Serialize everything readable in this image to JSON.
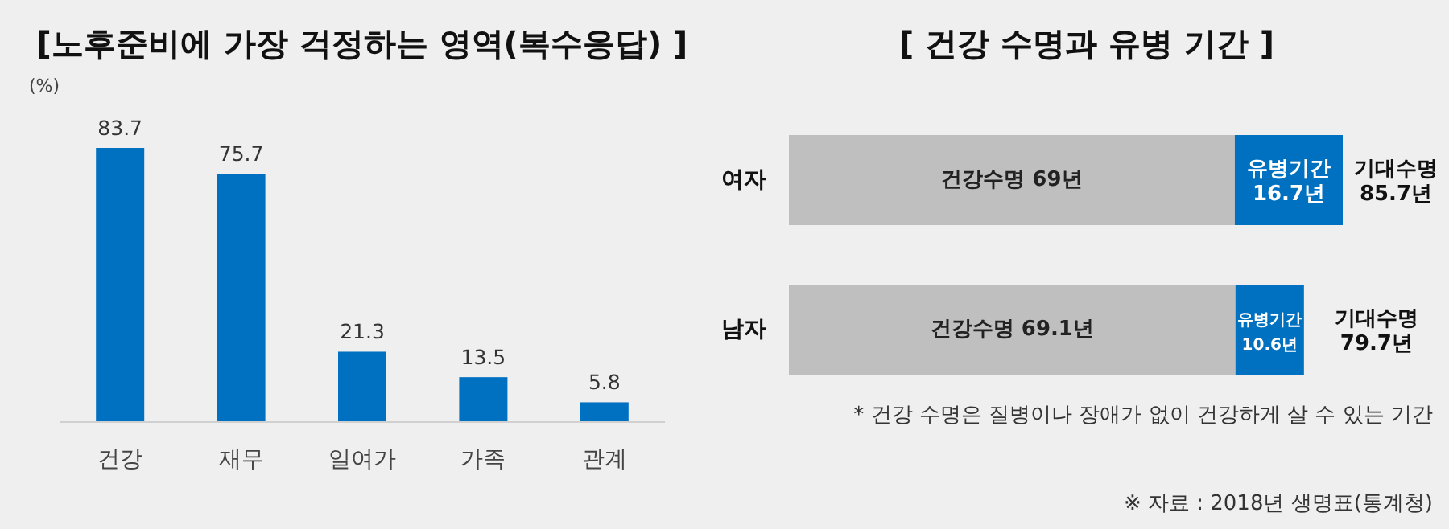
{
  "chart_data": [
    {
      "type": "bar",
      "title": "[노후준비에 가장 걱정하는 영역(복수응답) ]",
      "ylabel": "(%)",
      "categories": [
        "건강",
        "재무",
        "일여가",
        "가족",
        "관계"
      ],
      "values": [
        83.7,
        75.7,
        21.3,
        13.5,
        5.8
      ],
      "color": "#0070c0",
      "data_labels": true
    },
    {
      "type": "bar",
      "orientation": "horizontal",
      "stacked": true,
      "title": "[ 건강 수명과 유병 기간 ]",
      "categories": [
        "여자",
        "남자"
      ],
      "series": [
        {
          "color": "#bfbfbf",
          "values": [
            69,
            69.1
          ],
          "value_labels": [
            "건강수명 69년",
            "건강수명 69.1년"
          ]
        },
        {
          "color": "#0070c0",
          "values": [
            16.7,
            10.6
          ],
          "value_labels": [
            "유병기간 16.7년",
            "유병기간 10.6년"
          ]
        }
      ],
      "totals": [
        "기대수명 85.7년",
        "기대수명 79.7년"
      ],
      "annotations": [
        "* 건강 수명은 질병이나 장애가 없이 건강하게 살 수 있는 기간",
        "※ 자료 : 2018년 생명표(통계청)"
      ]
    }
  ]
}
